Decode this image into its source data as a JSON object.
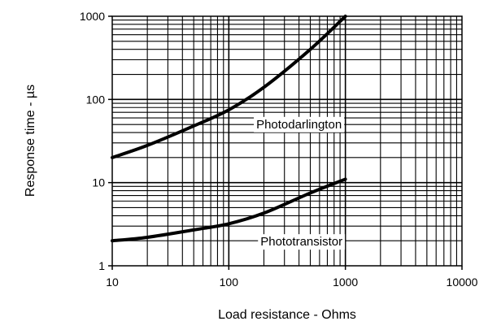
{
  "chart_data": {
    "type": "line",
    "title": "",
    "xlabel": "Load resistance - Ohms",
    "ylabel": "Response time - µs",
    "xscale": "log",
    "yscale": "log",
    "xlim": [
      10,
      10000
    ],
    "ylim": [
      1,
      1000
    ],
    "x_ticks": [
      "10",
      "100",
      "1000",
      "10000"
    ],
    "y_ticks": [
      "1000",
      "100",
      "10",
      "1"
    ],
    "grid": true,
    "series": [
      {
        "name": "Photodarlington",
        "x": [
          10,
          20,
          50,
          100,
          200,
          500,
          1000
        ],
        "y": [
          20,
          28,
          48,
          75,
          140,
          400,
          1000
        ]
      },
      {
        "name": "Phototransistor",
        "x": [
          10,
          20,
          50,
          100,
          200,
          500,
          1000
        ],
        "y": [
          2,
          2.2,
          2.7,
          3.2,
          4.3,
          7.5,
          11
        ]
      }
    ],
    "annotations": [
      "Photodarlington",
      "Phototransistor"
    ]
  }
}
